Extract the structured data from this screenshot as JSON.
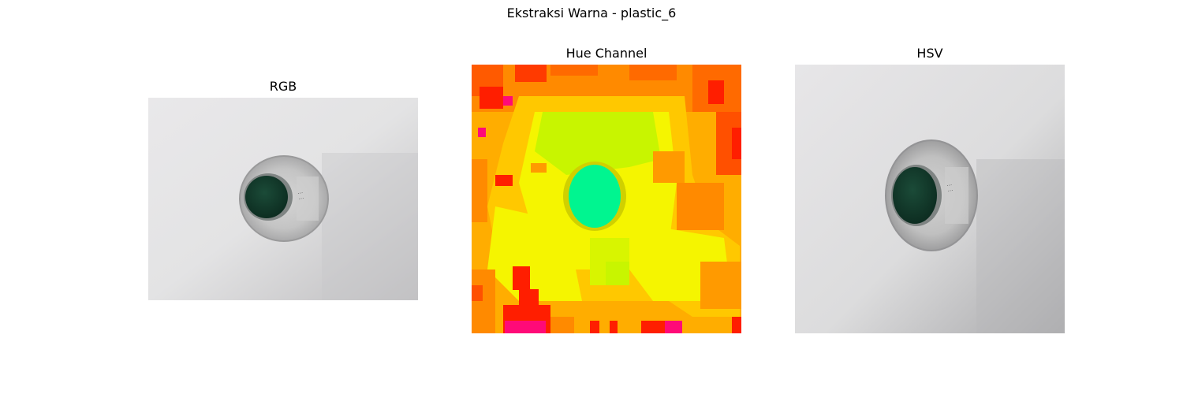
{
  "figure": {
    "title": "Ekstraksi Warna - plastic_6"
  },
  "panels": [
    {
      "title": "RGB",
      "image": "photo of transparent plastic bottle with dark green cap on white surface"
    },
    {
      "title": "Hue Channel",
      "image": "hue channel false-color map: yellow/orange/red background, green ellipse at cap"
    },
    {
      "title": "HSV",
      "image": "photo of transparent plastic bottle with dark green cap on light gray surface"
    }
  ],
  "colors": {
    "cap_dark_green": "#123b2c",
    "background_light": "#e6e6e8",
    "hue_yellow": "#f5f500",
    "hue_orange": "#ffad00",
    "hue_red": "#ff2a00",
    "hue_green": "#00f590",
    "hue_lime": "#c8f500",
    "hue_magenta": "#ff0a78"
  }
}
